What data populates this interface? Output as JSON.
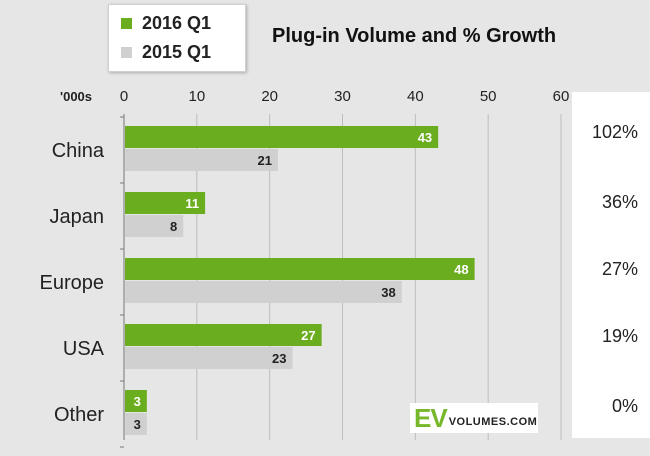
{
  "chart_data": {
    "type": "bar",
    "orientation": "horizontal",
    "title": "Plug-in Volume and % Growth",
    "unit_label": "'000s",
    "categories": [
      "China",
      "Japan",
      "Europe",
      "USA",
      "Other"
    ],
    "series": [
      {
        "name": "2016 Q1",
        "color": "#6aae1f",
        "label_color": "#ffffff",
        "values": [
          43,
          11,
          48,
          27,
          3
        ]
      },
      {
        "name": "2015 Q1",
        "color": "#d0d0d0",
        "label_color": "#222222",
        "values": [
          21,
          8,
          38,
          23,
          3
        ]
      }
    ],
    "x_ticks": [
      0,
      10,
      20,
      30,
      40,
      50,
      60
    ],
    "xlim": [
      0,
      60
    ],
    "growth": [
      "102%",
      "36%",
      "27%",
      "19%",
      "0%"
    ],
    "legend_position": "top-left"
  },
  "logo": {
    "ev": "EV",
    "rest": "VOLUMES.COM"
  },
  "colors": {
    "background": "#e6e6e6",
    "grid": "#bdbdbd",
    "axis": "#777777"
  }
}
